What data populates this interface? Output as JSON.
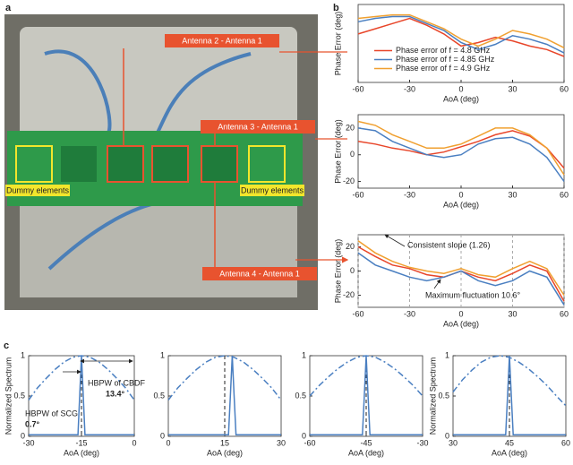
{
  "panels": {
    "a": "a",
    "b": "b",
    "c": "c"
  },
  "photo": {
    "callouts": [
      "Antenna 2 - Antenna 1",
      "Antenna 3 - Antenna 1",
      "Antenna 4 - Antenna 1"
    ],
    "dummy": [
      "Dummy elements",
      "Dummy elements"
    ]
  },
  "chart_data": [
    {
      "type": "line",
      "ylabel": "Phase Error (deg)",
      "xlabel": "AoA (deg)",
      "xlim": [
        -60,
        60
      ],
      "xticks": [
        -60,
        -30,
        0,
        30,
        60
      ],
      "ylim": [
        -25,
        20
      ],
      "grid": false,
      "legend": "center",
      "x": [
        -60,
        -50,
        -40,
        -30,
        -20,
        -10,
        0,
        10,
        20,
        30,
        40,
        50,
        60
      ],
      "series": [
        {
          "name": "Phase error of  f = 4.8 GHz",
          "color": "#e8462a",
          "values": [
            3,
            6,
            9,
            12,
            8,
            3,
            -4,
            -2,
            1,
            -1,
            -4,
            -6,
            -10
          ]
        },
        {
          "name": "Phase error of  f = 4.85 GHz",
          "color": "#4a7fc1",
          "values": [
            10,
            12,
            13,
            13,
            9,
            5,
            -2,
            -6,
            -3,
            2,
            0,
            -3,
            -8
          ]
        },
        {
          "name": "Phase error of  f = 4.9 GHz",
          "color": "#f0a030",
          "values": [
            12,
            13,
            14,
            14,
            10,
            6,
            0,
            -4,
            0,
            5,
            3,
            0,
            -5
          ]
        }
      ]
    },
    {
      "type": "line",
      "ylabel": "Phase Error (deg)",
      "xlabel": "AoA (deg)",
      "xlim": [
        -60,
        60
      ],
      "xticks": [
        -60,
        -30,
        0,
        30,
        60
      ],
      "ylim": [
        -25,
        30
      ],
      "yticks": [
        -20,
        0,
        20
      ],
      "grid": false,
      "x": [
        -60,
        -50,
        -40,
        -30,
        -20,
        -10,
        0,
        10,
        20,
        30,
        40,
        50,
        60
      ],
      "series": [
        {
          "name": "Phase error of  f = 4.8 GHz",
          "color": "#e8462a",
          "values": [
            10,
            8,
            5,
            3,
            0,
            2,
            6,
            10,
            15,
            18,
            14,
            5,
            -10
          ]
        },
        {
          "name": "Phase error of  f = 4.85 GHz",
          "color": "#4a7fc1",
          "values": [
            20,
            18,
            10,
            5,
            0,
            -2,
            0,
            8,
            12,
            13,
            8,
            -2,
            -20
          ]
        },
        {
          "name": "Phase error of  f = 4.9 GHz",
          "color": "#f0a030",
          "values": [
            25,
            22,
            15,
            10,
            5,
            5,
            8,
            14,
            20,
            20,
            15,
            5,
            -15
          ]
        }
      ]
    },
    {
      "type": "line",
      "ylabel": "Phase Error (deg)",
      "xlabel": "AoA (deg)",
      "xlim": [
        -60,
        60
      ],
      "xticks": [
        -60,
        -30,
        0,
        30,
        60
      ],
      "ylim": [
        -30,
        30
      ],
      "yticks": [
        -20,
        0,
        20
      ],
      "grid": true,
      "x": [
        -60,
        -50,
        -40,
        -30,
        -20,
        -10,
        0,
        10,
        20,
        30,
        40,
        50,
        60
      ],
      "series": [
        {
          "name": "Phase error of  f = 4.8 GHz",
          "color": "#e8462a",
          "values": [
            20,
            12,
            5,
            2,
            -3,
            -5,
            0,
            -5,
            -8,
            -2,
            5,
            0,
            -25
          ]
        },
        {
          "name": "Phase error of  f = 4.85 GHz",
          "color": "#4a7fc1",
          "values": [
            15,
            5,
            0,
            -5,
            -8,
            -5,
            0,
            -8,
            -12,
            -8,
            0,
            -5,
            -28
          ]
        },
        {
          "name": "Phase error of  f = 4.9 GHz",
          "color": "#f0a030",
          "values": [
            25,
            15,
            8,
            3,
            0,
            -2,
            2,
            -3,
            -5,
            2,
            8,
            2,
            -20
          ]
        }
      ],
      "annotations": [
        {
          "text": "Consistent slope (1.26)"
        },
        {
          "text": "Maximum fluctuation 10.6°"
        }
      ]
    },
    {
      "type": "line",
      "ylabel": "Normalized Spectrum",
      "xlabel": "AoA (deg)",
      "xlim": [
        -30,
        0
      ],
      "xticks": [
        -30,
        -15,
        0
      ],
      "ylim": [
        0,
        1
      ],
      "yticks": [
        0,
        0.5,
        1
      ],
      "vline": -15,
      "series": [
        {
          "color": "#4a7fc1",
          "dash": "dashdot",
          "x": [
            -30,
            -27.5,
            -25,
            -22.5,
            -20,
            -17.5,
            -15,
            -12.5,
            -10,
            -7.5,
            -5,
            -2.5,
            0
          ],
          "values": [
            0.45,
            0.6,
            0.72,
            0.83,
            0.92,
            0.98,
            1,
            0.98,
            0.92,
            0.83,
            0.72,
            0.6,
            0.45
          ]
        },
        {
          "color": "#4a7fc1",
          "x": [
            -30,
            -16,
            -15.5,
            -15,
            -14.5,
            -14,
            0
          ],
          "values": [
            0.02,
            0.02,
            0.5,
            1,
            0.5,
            0.02,
            0.02
          ]
        }
      ],
      "annotations": [
        {
          "text": "HBPW of SCG"
        },
        {
          "text": "0.7°",
          "bold": true
        },
        {
          "text": "HBPW of CBDF"
        },
        {
          "text": "13.4°",
          "bold": true
        }
      ]
    },
    {
      "type": "line",
      "xlabel": "AoA (deg)",
      "xlim": [
        0,
        30
      ],
      "xticks": [
        0,
        15,
        30
      ],
      "ylim": [
        0,
        1
      ],
      "yticks": [
        0,
        0.5,
        1
      ],
      "vline": 15,
      "series": [
        {
          "color": "#4a7fc1",
          "dash": "dashdot",
          "x": [
            0,
            2.5,
            5,
            7.5,
            10,
            12.5,
            15,
            17.5,
            20,
            22.5,
            25,
            27.5,
            30
          ],
          "values": [
            0.45,
            0.6,
            0.72,
            0.83,
            0.92,
            0.98,
            1,
            0.98,
            0.92,
            0.83,
            0.72,
            0.6,
            0.45
          ]
        },
        {
          "color": "#4a7fc1",
          "x": [
            0,
            16,
            16.5,
            17,
            17.5,
            18,
            30
          ],
          "values": [
            0.02,
            0.02,
            0.5,
            1,
            0.5,
            0.02,
            0.02
          ]
        }
      ]
    },
    {
      "type": "line",
      "xlabel": "AoA (deg)",
      "xlim": [
        -60,
        -30
      ],
      "xticks": [
        -60,
        -45,
        -30
      ],
      "ylim": [
        0,
        1
      ],
      "yticks": [
        0,
        0.5,
        1
      ],
      "vline": -45,
      "series": [
        {
          "color": "#4a7fc1",
          "dash": "dashdot",
          "x": [
            -60,
            -57.5,
            -55,
            -52.5,
            -50,
            -47.5,
            -45,
            -42.5,
            -40,
            -37.5,
            -35,
            -32.5,
            -30
          ],
          "values": [
            0.5,
            0.63,
            0.74,
            0.84,
            0.92,
            0.98,
            1,
            0.98,
            0.92,
            0.84,
            0.74,
            0.63,
            0.5
          ]
        },
        {
          "color": "#4a7fc1",
          "x": [
            -60,
            -46,
            -45.5,
            -45,
            -44.5,
            -44,
            -30
          ],
          "values": [
            0.02,
            0.02,
            0.5,
            1,
            0.5,
            0.02,
            0.02
          ]
        }
      ]
    },
    {
      "type": "line",
      "ylabel": "Normalized Spectrum",
      "xlabel": "AoA (deg)",
      "xlim": [
        30,
        60
      ],
      "xticks": [
        30,
        45,
        60
      ],
      "ylim": [
        0,
        1
      ],
      "yticks": [
        0,
        0.5,
        1
      ],
      "vline": 45,
      "series": [
        {
          "color": "#4a7fc1",
          "dash": "dashdot",
          "x": [
            30,
            32.5,
            35,
            37.5,
            40,
            42.5,
            45,
            47.5,
            50,
            52.5,
            55,
            57.5,
            60
          ],
          "values": [
            0.55,
            0.7,
            0.82,
            0.92,
            0.98,
            1,
            0.98,
            0.92,
            0.84,
            0.74,
            0.63,
            0.5,
            0.38
          ]
        },
        {
          "color": "#4a7fc1",
          "x": [
            30,
            44,
            44.5,
            45,
            45.5,
            46,
            60
          ],
          "values": [
            0.02,
            0.02,
            0.5,
            1,
            0.5,
            0.02,
            0.02
          ]
        }
      ]
    }
  ]
}
